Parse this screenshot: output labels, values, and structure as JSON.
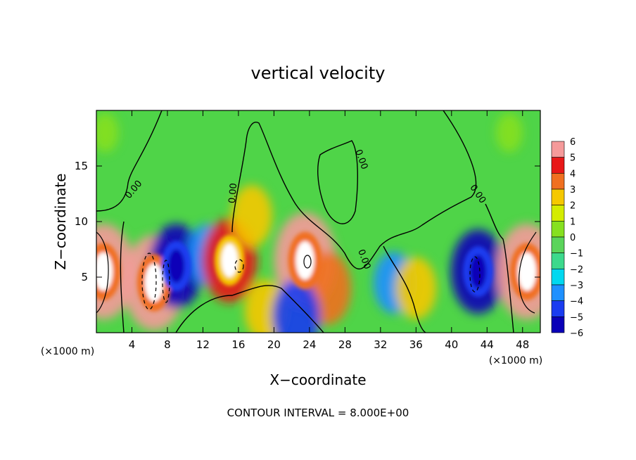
{
  "chart_data": {
    "type": "heatmap",
    "title": "vertical velocity",
    "xlabel": "X−coordinate",
    "ylabel": "Z−coordinate",
    "x_unit": "(×1000 m)",
    "y_unit": "(×1000 m)",
    "xlim": [
      0,
      50
    ],
    "ylim": [
      0,
      20
    ],
    "x_ticks": [
      4,
      8,
      12,
      16,
      20,
      24,
      28,
      32,
      36,
      40,
      44,
      48
    ],
    "y_ticks": [
      5,
      10,
      15
    ],
    "annotation": "CONTOUR INTERVAL = 8.000E+00",
    "contour_labels": [
      "0.00",
      "0.00",
      "0.00",
      "0.00",
      "0.00"
    ],
    "colorbar": {
      "ticks": [
        "6",
        "5",
        "4",
        "3",
        "2",
        "1",
        "0",
        "−1",
        "−2",
        "−3",
        "−4",
        "−5",
        "−6"
      ],
      "levels": [
        -6,
        -5,
        -4,
        -3,
        -2,
        -1,
        0,
        1,
        2,
        3,
        4,
        5,
        6
      ],
      "colors": [
        "#7a1fa8",
        "#0a00b8",
        "#1a3cf0",
        "#1e90ff",
        "#00d8f0",
        "#3cd98c",
        "#5ad45a",
        "#86e020",
        "#d4ec00",
        "#f5c800",
        "#f07020",
        "#e81818",
        "#f59a9a"
      ]
    },
    "background_level_color": "#4fd448",
    "features": [
      {
        "x": 0.8,
        "z": 5.5,
        "value": 6
      },
      {
        "x": 6.5,
        "z": 4.5,
        "value": 6
      },
      {
        "x": 9.0,
        "z": 6.0,
        "value": -5
      },
      {
        "x": 12.5,
        "z": 7.0,
        "value": -3
      },
      {
        "x": 15.0,
        "z": 6.5,
        "value": 5
      },
      {
        "x": 17.5,
        "z": 10.5,
        "value": 3
      },
      {
        "x": 19.0,
        "z": 2.0,
        "value": 3
      },
      {
        "x": 23.5,
        "z": 6.5,
        "value": 6
      },
      {
        "x": 26.0,
        "z": 4.0,
        "value": 4
      },
      {
        "x": 22.5,
        "z": 1.5,
        "value": -4
      },
      {
        "x": 33.5,
        "z": 4.5,
        "value": -3
      },
      {
        "x": 36.0,
        "z": 4.0,
        "value": 3
      },
      {
        "x": 43.0,
        "z": 5.5,
        "value": -5
      },
      {
        "x": 48.5,
        "z": 5.5,
        "value": 6
      },
      {
        "x": 1.0,
        "z": 18.0,
        "value": 1
      },
      {
        "x": 46.5,
        "z": 18.0,
        "value": 1
      }
    ]
  }
}
